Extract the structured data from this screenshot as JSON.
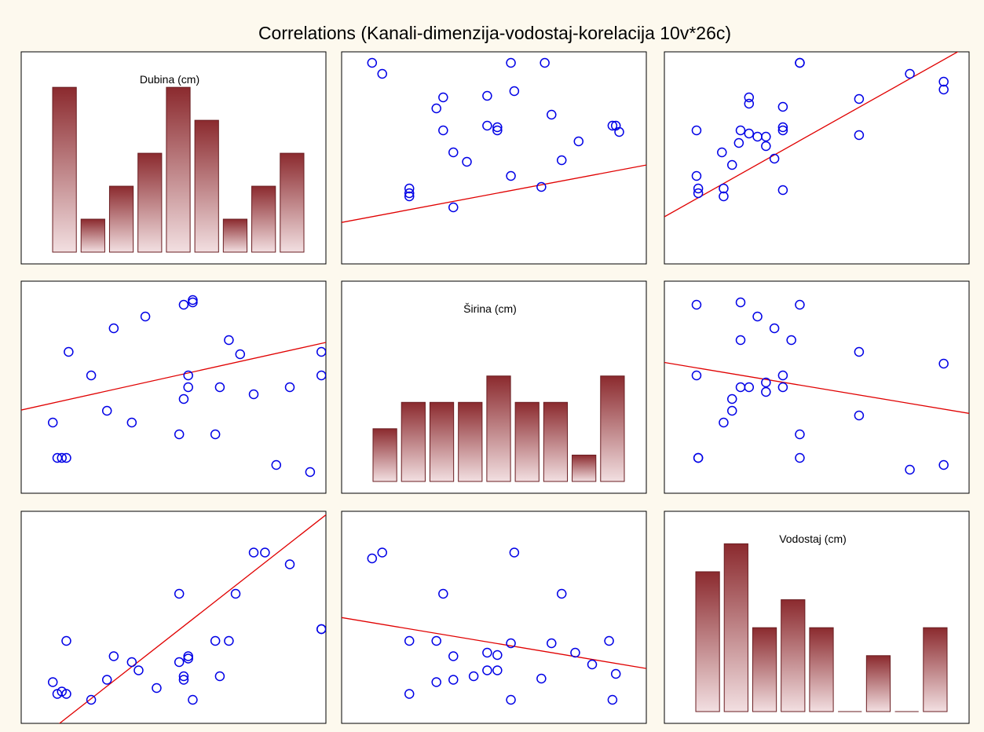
{
  "figure": {
    "title": "Correlations (Kanali-dimenzija-vodostaj-korelacija 10v*26c)"
  },
  "colors": {
    "background": "#fdf9ee",
    "panel": "#ffffff",
    "point": "#0000e6",
    "fit_line": "#e00000",
    "bar_dark": "#8b2a2e",
    "bar_light": "#f2dfe1"
  },
  "chart_data": [
    {
      "type": "bar",
      "panel": "Dubina-histogram",
      "title": "Dubina (cm)",
      "values": [
        5,
        1,
        2,
        3,
        5,
        4,
        1,
        2,
        3
      ],
      "ylim": [
        0,
        5.6
      ]
    },
    {
      "type": "scatter",
      "panel": "Dubina-vs-Sirina",
      "xvar": "Širina (cm)",
      "yvar": "Dubina (cm)",
      "xlim": [
        3,
        21
      ],
      "ylim": [
        65,
        200
      ],
      "fit": [
        85.3,
        2.03
      ],
      "points": [
        [
          4.8,
          193
        ],
        [
          5.4,
          186
        ],
        [
          7,
          108
        ],
        [
          7,
          110
        ],
        [
          7,
          113
        ],
        [
          8.6,
          164
        ],
        [
          9,
          150
        ],
        [
          9,
          171
        ],
        [
          9.6,
          101
        ],
        [
          9.6,
          136
        ],
        [
          10.4,
          130
        ],
        [
          11.6,
          172
        ],
        [
          11.6,
          153
        ],
        [
          12.2,
          150
        ],
        [
          12.2,
          152
        ],
        [
          13,
          121
        ],
        [
          13,
          193
        ],
        [
          13.2,
          175
        ],
        [
          14.8,
          114
        ],
        [
          15,
          193
        ],
        [
          15.4,
          160
        ],
        [
          16,
          131
        ],
        [
          17,
          143
        ],
        [
          19,
          153
        ],
        [
          19.2,
          153
        ],
        [
          19.4,
          149
        ]
      ]
    },
    {
      "type": "scatter",
      "panel": "Dubina-vs-Vodostaj",
      "xvar": "Vodostaj (cm)",
      "yvar": "Dubina (cm)",
      "xlim": [
        0,
        36
      ],
      "ylim": [
        65,
        200
      ],
      "fit": [
        95,
        3.03
      ],
      "points": [
        [
          3.8,
          121
        ],
        [
          4,
          110
        ],
        [
          4,
          113
        ],
        [
          3.8,
          150
        ],
        [
          6.8,
          136
        ],
        [
          7,
          108
        ],
        [
          7,
          113
        ],
        [
          8.8,
          142
        ],
        [
          8,
          128
        ],
        [
          9,
          150
        ],
        [
          10,
          148
        ],
        [
          10,
          171
        ],
        [
          10,
          167
        ],
        [
          11,
          146
        ],
        [
          12,
          146
        ],
        [
          12,
          140
        ],
        [
          13,
          132
        ],
        [
          14,
          150
        ],
        [
          14,
          165
        ],
        [
          14,
          152
        ],
        [
          14,
          112
        ],
        [
          16,
          193
        ],
        [
          16,
          193
        ],
        [
          23,
          170
        ],
        [
          23,
          147
        ],
        [
          29,
          186
        ],
        [
          33,
          176
        ],
        [
          33,
          181
        ]
      ]
    },
    {
      "type": "scatter",
      "panel": "Sirina-vs-Dubina",
      "xvar": "Dubina (cm)",
      "yvar": "Širina (cm)",
      "xlim": [
        65,
        200
      ],
      "ylim": [
        3,
        21
      ],
      "fit": [
        7.3,
        0.0425
      ],
      "points": [
        [
          79,
          9
        ],
        [
          81,
          6
        ],
        [
          83,
          6
        ],
        [
          85,
          6
        ],
        [
          86,
          15
        ],
        [
          96,
          13
        ],
        [
          103,
          10
        ],
        [
          106,
          17
        ],
        [
          114,
          9
        ],
        [
          120,
          18
        ],
        [
          135,
          8
        ],
        [
          137,
          11
        ],
        [
          139,
          12
        ],
        [
          139,
          13
        ],
        [
          137,
          19
        ],
        [
          141,
          19.2
        ],
        [
          141,
          19.4
        ],
        [
          151,
          8
        ],
        [
          153,
          12
        ],
        [
          157,
          16
        ],
        [
          184,
          12
        ],
        [
          178,
          5.4
        ],
        [
          193,
          4.8
        ],
        [
          198,
          13
        ],
        [
          198,
          15
        ],
        [
          162,
          14.8
        ],
        [
          168,
          11.4
        ]
      ]
    },
    {
      "type": "bar",
      "panel": "Sirina-histogram",
      "title": "Širina (cm)",
      "values": [
        2,
        3,
        3,
        3,
        4,
        3,
        3,
        1,
        4
      ],
      "ylim": [
        0,
        7
      ]
    },
    {
      "type": "scatter",
      "panel": "Sirina-vs-Vodostaj",
      "xvar": "Vodostaj (cm)",
      "yvar": "Širina (cm)",
      "xlim": [
        0,
        36
      ],
      "ylim": [
        3,
        21
      ],
      "fit": [
        14.1,
        -0.12
      ],
      "points": [
        [
          3.8,
          19
        ],
        [
          4,
          6
        ],
        [
          4,
          6
        ],
        [
          3.8,
          13
        ],
        [
          7,
          9
        ],
        [
          8,
          10
        ],
        [
          8,
          11
        ],
        [
          9,
          12
        ],
        [
          10,
          12
        ],
        [
          12,
          12.4
        ],
        [
          9,
          16
        ],
        [
          9,
          19.2
        ],
        [
          11,
          18
        ],
        [
          12,
          11.6
        ],
        [
          13,
          17
        ],
        [
          14,
          12
        ],
        [
          15,
          16
        ],
        [
          14,
          13
        ],
        [
          16,
          19
        ],
        [
          16,
          8
        ],
        [
          16,
          6
        ],
        [
          23,
          15
        ],
        [
          23,
          9.6
        ],
        [
          29,
          5
        ],
        [
          33,
          5.4
        ],
        [
          33,
          14
        ]
      ]
    },
    {
      "type": "scatter",
      "panel": "Vodostaj-vs-Dubina",
      "xvar": "Dubina (cm)",
      "yvar": "Vodostaj (cm)",
      "xlim": [
        65,
        200
      ],
      "ylim": [
        0,
        36
      ],
      "fit": [
        -24.6,
        0.3
      ],
      "points": [
        [
          79,
          7
        ],
        [
          81,
          5
        ],
        [
          83,
          5.4
        ],
        [
          85,
          5
        ],
        [
          85,
          14
        ],
        [
          96,
          4
        ],
        [
          103,
          7.4
        ],
        [
          106,
          11.4
        ],
        [
          114,
          10.4
        ],
        [
          117,
          9
        ],
        [
          125,
          6
        ],
        [
          135,
          10.4
        ],
        [
          135,
          22
        ],
        [
          137,
          8
        ],
        [
          137,
          7.4
        ],
        [
          139,
          11
        ],
        [
          141,
          4
        ],
        [
          139,
          11.4
        ],
        [
          151,
          14
        ],
        [
          153,
          8
        ],
        [
          157,
          14
        ],
        [
          160,
          22
        ],
        [
          168,
          29
        ],
        [
          173,
          29
        ],
        [
          184,
          27
        ],
        [
          198,
          16
        ],
        [
          198,
          16
        ]
      ]
    },
    {
      "type": "scatter",
      "panel": "Vodostaj-vs-Sirina",
      "xvar": "Širina (cm)",
      "yvar": "Vodostaj (cm)",
      "xlim": [
        3,
        21
      ],
      "ylim": [
        0,
        36
      ],
      "fit": [
        19.4,
        -0.48
      ],
      "points": [
        [
          4.8,
          28
        ],
        [
          5.4,
          29
        ],
        [
          7,
          14
        ],
        [
          7,
          5
        ],
        [
          8.6,
          14
        ],
        [
          8.6,
          7
        ],
        [
          9,
          22
        ],
        [
          9.6,
          7.4
        ],
        [
          9.6,
          11.4
        ],
        [
          10.8,
          8
        ],
        [
          11.6,
          12
        ],
        [
          11.6,
          9
        ],
        [
          12.2,
          11.6
        ],
        [
          12.2,
          9
        ],
        [
          13,
          4
        ],
        [
          13,
          13.6
        ],
        [
          13.2,
          29
        ],
        [
          14.8,
          7.6
        ],
        [
          15.4,
          13.6
        ],
        [
          16,
          22
        ],
        [
          16.8,
          12
        ],
        [
          17.8,
          10
        ],
        [
          18.8,
          14
        ],
        [
          19,
          4
        ],
        [
          19.2,
          8.4
        ]
      ]
    },
    {
      "type": "bar",
      "panel": "Vodostaj-histogram",
      "title": "Vodostaj (cm)",
      "values": [
        5,
        6,
        3,
        4,
        3,
        0,
        2,
        0,
        3
      ],
      "ylim": [
        0,
        6.6
      ]
    }
  ]
}
